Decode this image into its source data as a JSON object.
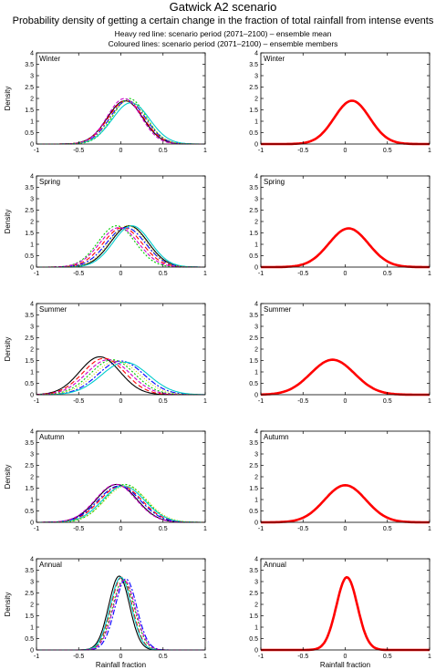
{
  "title": "Gatwick A2 scenario",
  "subtitle": "Probability density of getting a certain change in the fraction of total rainfall from intense events",
  "legend_line1": "Heavy red line: scenario period (2071–2100) – ensemble mean",
  "legend_line2": "Coloured lines: scenario period (2071–2100) – ensemble members",
  "colors": {
    "ensemble_mean": "#ff0000",
    "member_palette": [
      "#000000",
      "#ff0000",
      "#00cc00",
      "#0000ff",
      "#00cccc",
      "#cc00cc",
      "#cccc00",
      "#888888"
    ]
  },
  "chart_data": [
    {
      "type": "line",
      "panel": "Winter",
      "column": "members",
      "ylabel": "Density",
      "xlabel": "",
      "xlim": [
        -1,
        1
      ],
      "ylim": [
        0,
        4
      ],
      "xticks": [
        -1,
        -0.5,
        0,
        0.5,
        1
      ],
      "yticks": [
        0,
        0.5,
        1,
        1.5,
        2,
        2.5,
        3,
        3.5,
        4
      ],
      "series": [
        {
          "mu": 0.05,
          "sigma": 0.21
        },
        {
          "mu": 0.06,
          "sigma": 0.21
        },
        {
          "mu": 0.1,
          "sigma": 0.2
        },
        {
          "mu": 0.08,
          "sigma": 0.21
        },
        {
          "mu": 0.12,
          "sigma": 0.22
        },
        {
          "mu": 0.04,
          "sigma": 0.2
        },
        {
          "mu": 0.09,
          "sigma": 0.21
        }
      ]
    },
    {
      "type": "line",
      "panel": "Winter",
      "column": "mean",
      "ylabel": "",
      "xlabel": "",
      "xlim": [
        -1,
        1
      ],
      "ylim": [
        0,
        4
      ],
      "xticks": [
        -1,
        -0.5,
        0,
        0.5,
        1
      ],
      "yticks": [
        0,
        0.5,
        1,
        1.5,
        2,
        2.5,
        3,
        3.5,
        4
      ],
      "series": [
        {
          "mu": 0.08,
          "sigma": 0.21
        }
      ]
    },
    {
      "type": "line",
      "panel": "Spring",
      "column": "members",
      "ylabel": "Density",
      "xlabel": "",
      "xlim": [
        -1,
        1
      ],
      "ylim": [
        0,
        4
      ],
      "xticks": [
        -1,
        -0.5,
        0,
        0.5,
        1
      ],
      "yticks": [
        0,
        0.5,
        1,
        1.5,
        2,
        2.5,
        3,
        3.5,
        4
      ],
      "series": [
        {
          "mu": 0.1,
          "sigma": 0.22
        },
        {
          "mu": 0.02,
          "sigma": 0.23
        },
        {
          "mu": -0.05,
          "sigma": 0.22
        },
        {
          "mu": 0.06,
          "sigma": 0.23
        },
        {
          "mu": 0.13,
          "sigma": 0.22
        },
        {
          "mu": -0.02,
          "sigma": 0.23
        },
        {
          "mu": 0.08,
          "sigma": 0.22
        }
      ]
    },
    {
      "type": "line",
      "panel": "Spring",
      "column": "mean",
      "ylabel": "",
      "xlabel": "",
      "xlim": [
        -1,
        1
      ],
      "ylim": [
        0,
        4
      ],
      "xticks": [
        -1,
        -0.5,
        0,
        0.5,
        1
      ],
      "yticks": [
        0,
        0.5,
        1,
        1.5,
        2,
        2.5,
        3,
        3.5,
        4
      ],
      "series": [
        {
          "mu": 0.04,
          "sigma": 0.235
        }
      ]
    },
    {
      "type": "line",
      "panel": "Summer",
      "column": "members",
      "ylabel": "Density",
      "xlabel": "",
      "xlim": [
        -1,
        1
      ],
      "ylim": [
        0,
        4
      ],
      "xticks": [
        -1,
        -0.5,
        0,
        0.5,
        1
      ],
      "yticks": [
        0,
        0.5,
        1,
        1.5,
        2,
        2.5,
        3,
        3.5,
        4
      ],
      "series": [
        {
          "mu": -0.25,
          "sigma": 0.24
        },
        {
          "mu": -0.2,
          "sigma": 0.25
        },
        {
          "mu": -0.1,
          "sigma": 0.26
        },
        {
          "mu": 0,
          "sigma": 0.27
        },
        {
          "mu": 0.05,
          "sigma": 0.28
        },
        {
          "mu": -0.15,
          "sigma": 0.26
        },
        {
          "mu": -0.05,
          "sigma": 0.27
        }
      ]
    },
    {
      "type": "line",
      "panel": "Summer",
      "column": "mean",
      "ylabel": "",
      "xlabel": "",
      "xlim": [
        -1,
        1
      ],
      "ylim": [
        0,
        4
      ],
      "xticks": [
        -1,
        -0.5,
        0,
        0.5,
        1
      ],
      "yticks": [
        0,
        0.5,
        1,
        1.5,
        2,
        2.5,
        3,
        3.5,
        4
      ],
      "series": [
        {
          "mu": -0.15,
          "sigma": 0.26
        }
      ]
    },
    {
      "type": "line",
      "panel": "Autumn",
      "column": "members",
      "ylabel": "Density",
      "xlabel": "",
      "xlim": [
        -1,
        1
      ],
      "ylim": [
        0,
        4
      ],
      "xticks": [
        -1,
        -0.5,
        0,
        0.5,
        1
      ],
      "yticks": [
        0,
        0.5,
        1,
        1.5,
        2,
        2.5,
        3,
        3.5,
        4
      ],
      "series": [
        {
          "mu": -0.05,
          "sigma": 0.24
        },
        {
          "mu": 0,
          "sigma": 0.25
        },
        {
          "mu": 0.05,
          "sigma": 0.24
        },
        {
          "mu": -0.02,
          "sigma": 0.25
        },
        {
          "mu": 0.03,
          "sigma": 0.25
        },
        {
          "mu": -0.06,
          "sigma": 0.24
        },
        {
          "mu": 0.06,
          "sigma": 0.25
        }
      ]
    },
    {
      "type": "line",
      "panel": "Autumn",
      "column": "mean",
      "ylabel": "",
      "xlabel": "",
      "xlim": [
        -1,
        1
      ],
      "ylim": [
        0,
        4
      ],
      "xticks": [
        -1,
        -0.5,
        0,
        0.5,
        1
      ],
      "yticks": [
        0,
        0.5,
        1,
        1.5,
        2,
        2.5,
        3,
        3.5,
        4
      ],
      "series": [
        {
          "mu": 0,
          "sigma": 0.245
        }
      ]
    },
    {
      "type": "line",
      "panel": "Annual",
      "column": "members",
      "ylabel": "Density",
      "xlabel": "Rainfall fraction",
      "xlim": [
        -1,
        1
      ],
      "ylim": [
        0,
        4
      ],
      "xticks": [
        -1,
        -0.5,
        0,
        0.5,
        1
      ],
      "yticks": [
        0,
        0.5,
        1,
        1.5,
        2,
        2.5,
        3,
        3.5,
        4
      ],
      "series": [
        {
          "mu": -0.02,
          "sigma": 0.123
        },
        {
          "mu": 0.01,
          "sigma": 0.125
        },
        {
          "mu": 0.03,
          "sigma": 0.13
        },
        {
          "mu": 0.06,
          "sigma": 0.128
        },
        {
          "mu": 0,
          "sigma": 0.125
        },
        {
          "mu": 0.04,
          "sigma": 0.13
        }
      ]
    },
    {
      "type": "line",
      "panel": "Annual",
      "column": "mean",
      "ylabel": "",
      "xlabel": "Rainfall fraction",
      "xlim": [
        -1,
        1
      ],
      "ylim": [
        0,
        4
      ],
      "xticks": [
        -1,
        -0.5,
        0,
        0.5,
        1
      ],
      "yticks": [
        0,
        0.5,
        1,
        1.5,
        2,
        2.5,
        3,
        3.5,
        4
      ],
      "series": [
        {
          "mu": 0.02,
          "sigma": 0.125
        }
      ]
    }
  ]
}
